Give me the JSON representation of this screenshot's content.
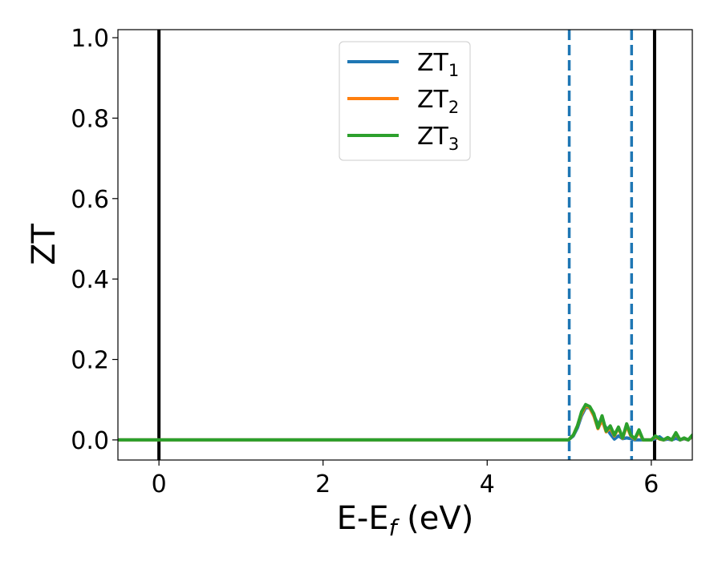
{
  "chart_data": {
    "type": "line",
    "title": "",
    "xlabel": "E-E",
    "xlabel_sub": "f",
    "xlabel_unit": " (eV)",
    "ylabel": "ZT",
    "xlim": [
      -0.5,
      6.5
    ],
    "ylim": [
      -0.05,
      1.02
    ],
    "xticks": [
      0,
      2,
      4,
      6
    ],
    "xtick_labels": [
      "0",
      "2",
      "4",
      "6"
    ],
    "yticks": [
      0.0,
      0.2,
      0.4,
      0.6,
      0.8,
      1.0
    ],
    "ytick_labels": [
      "0.0",
      "0.2",
      "0.4",
      "0.6",
      "0.8",
      "1.0"
    ],
    "grid": false,
    "legend_position": "top-center",
    "vertical_lines": [
      {
        "x": 0.0,
        "style": "solid",
        "color": "#000000"
      },
      {
        "x": 5.0,
        "style": "dashed",
        "color": "#1f77b4"
      },
      {
        "x": 5.76,
        "style": "dashed",
        "color": "#1f77b4"
      },
      {
        "x": 6.04,
        "style": "solid",
        "color": "#000000"
      }
    ],
    "series": [
      {
        "name": "ZT",
        "name_sub": "1",
        "color": "#1f77b4",
        "x": [
          -0.5,
          4.99,
          5.05,
          5.1,
          5.15,
          5.2,
          5.25,
          5.3,
          5.35,
          5.4,
          5.45,
          5.5,
          5.55,
          5.6,
          5.65,
          5.7,
          5.75,
          5.8,
          5.85,
          5.9,
          5.95,
          6.0,
          6.05,
          6.1,
          6.15,
          6.2,
          6.25,
          6.3,
          6.35,
          6.4,
          6.45,
          6.5
        ],
        "y": [
          0.0,
          0.0,
          0.01,
          0.03,
          0.06,
          0.08,
          0.08,
          0.06,
          0.04,
          0.045,
          0.03,
          0.015,
          0.002,
          0.01,
          0.003,
          0.005,
          0.003,
          0.0,
          0.0,
          0.0,
          0.0,
          0.0,
          0.003,
          0.008,
          0.0,
          0.002,
          0.0,
          0.004,
          0.0,
          0.003,
          0.0,
          0.008
        ]
      },
      {
        "name": "ZT",
        "name_sub": "2",
        "color": "#ff7f0e",
        "x": [
          -0.5,
          4.99,
          5.05,
          5.1,
          5.15,
          5.2,
          5.25,
          5.3,
          5.35,
          5.4,
          5.45,
          5.5,
          5.55,
          5.6,
          5.65,
          5.7,
          5.75,
          5.8,
          5.85,
          5.9,
          5.95,
          6.0,
          6.05,
          6.1,
          6.15,
          6.2,
          6.25,
          6.3,
          6.35,
          6.4,
          6.45,
          6.5
        ],
        "y": [
          0.0,
          0.0,
          0.012,
          0.035,
          0.065,
          0.085,
          0.08,
          0.06,
          0.028,
          0.05,
          0.02,
          0.03,
          0.01,
          0.03,
          0.004,
          0.035,
          0.01,
          0.002,
          0.02,
          0.0,
          0.0,
          0.0,
          0.008,
          0.002,
          0.0,
          0.005,
          0.0,
          0.016,
          0.0,
          0.004,
          0.0,
          0.01
        ]
      },
      {
        "name": "ZT",
        "name_sub": "3",
        "color": "#2ca02c",
        "x": [
          -0.5,
          4.99,
          5.05,
          5.1,
          5.15,
          5.2,
          5.25,
          5.3,
          5.35,
          5.4,
          5.45,
          5.5,
          5.55,
          5.6,
          5.65,
          5.7,
          5.75,
          5.8,
          5.85,
          5.9,
          5.95,
          6.0,
          6.05,
          6.1,
          6.15,
          6.2,
          6.25,
          6.3,
          6.35,
          6.4,
          6.45,
          6.5
        ],
        "y": [
          0.0,
          0.0,
          0.012,
          0.035,
          0.07,
          0.088,
          0.083,
          0.065,
          0.03,
          0.06,
          0.022,
          0.035,
          0.012,
          0.032,
          0.005,
          0.04,
          0.012,
          0.003,
          0.025,
          0.0,
          0.0,
          0.0,
          0.01,
          0.003,
          0.0,
          0.006,
          0.0,
          0.018,
          0.0,
          0.005,
          0.0,
          0.012
        ]
      }
    ]
  }
}
